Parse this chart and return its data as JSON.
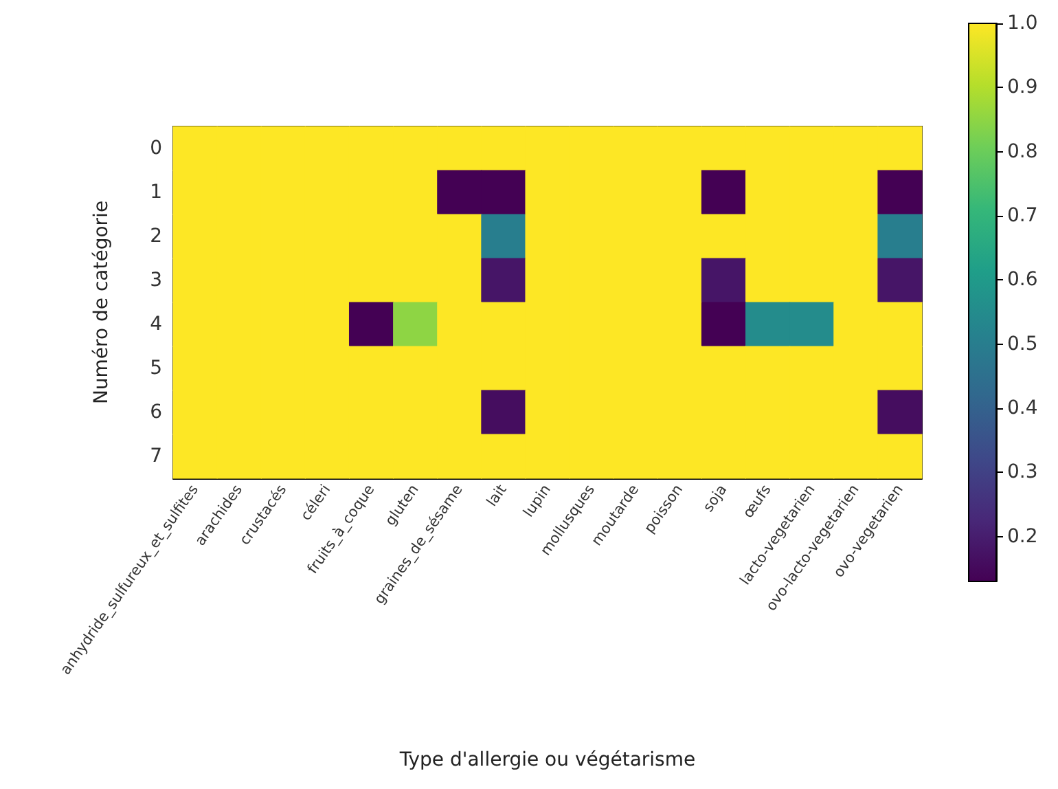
{
  "chart_data": {
    "type": "heatmap",
    "xlabel": "Type d'allergie ou végétarisme",
    "ylabel": "Numéro de catégorie",
    "categories": [
      "anhydride_sulfureux_et_sulfites",
      "arachides",
      "crustacés",
      "céleri",
      "fruits_à_coque",
      "gluten",
      "graines_de_sésame",
      "lait",
      "lupin",
      "mollusques",
      "moutarde",
      "poisson",
      "soja",
      "œufs",
      "lacto-vegetarien",
      "ovo-lacto-vegetarien",
      "ovo-vegetarien"
    ],
    "y_categories": [
      "0",
      "1",
      "2",
      "3",
      "4",
      "5",
      "6",
      "7"
    ],
    "cells": [
      [
        1,
        1,
        1,
        1,
        1,
        1,
        1,
        1,
        1,
        1,
        1,
        1,
        1,
        1,
        1,
        1,
        1
      ],
      [
        1,
        1,
        1,
        1,
        1,
        1,
        0.13,
        0.13,
        1,
        1,
        1,
        1,
        0.13,
        1,
        1,
        1,
        0.13
      ],
      [
        1,
        1,
        1,
        1,
        1,
        1,
        1,
        0.5,
        1,
        1,
        1,
        1,
        1,
        1,
        1,
        1,
        0.5
      ],
      [
        1,
        1,
        1,
        1,
        1,
        1,
        1,
        0.18,
        1,
        1,
        1,
        1,
        0.18,
        1,
        1,
        1,
        0.18
      ],
      [
        1,
        1,
        1,
        1,
        0.13,
        0.85,
        1,
        1,
        1,
        1,
        1,
        1,
        0.13,
        0.55,
        0.55,
        1,
        1
      ],
      [
        1,
        1,
        1,
        1,
        1,
        1,
        1,
        1,
        1,
        1,
        1,
        1,
        1,
        1,
        1,
        1,
        1
      ],
      [
        1,
        1,
        1,
        1,
        1,
        1,
        1,
        0.16,
        1,
        1,
        1,
        1,
        1,
        1,
        1,
        1,
        0.16
      ],
      [
        1,
        1,
        1,
        1,
        1,
        1,
        1,
        1,
        1,
        1,
        1,
        1,
        1,
        1,
        1,
        1,
        1
      ]
    ],
    "clim": [
      0.13,
      1.0
    ],
    "cticks": [
      {
        "value": 0.2,
        "label": "0.2"
      },
      {
        "value": 0.3,
        "label": "0.3"
      },
      {
        "value": 0.4,
        "label": "0.4"
      },
      {
        "value": 0.5,
        "label": "0.5"
      },
      {
        "value": 0.6,
        "label": "0.6"
      },
      {
        "value": 0.7,
        "label": "0.7"
      },
      {
        "value": 0.8,
        "label": "0.8"
      },
      {
        "value": 0.9,
        "label": "0.9"
      },
      {
        "value": 1.0,
        "label": "1.0"
      }
    ]
  }
}
